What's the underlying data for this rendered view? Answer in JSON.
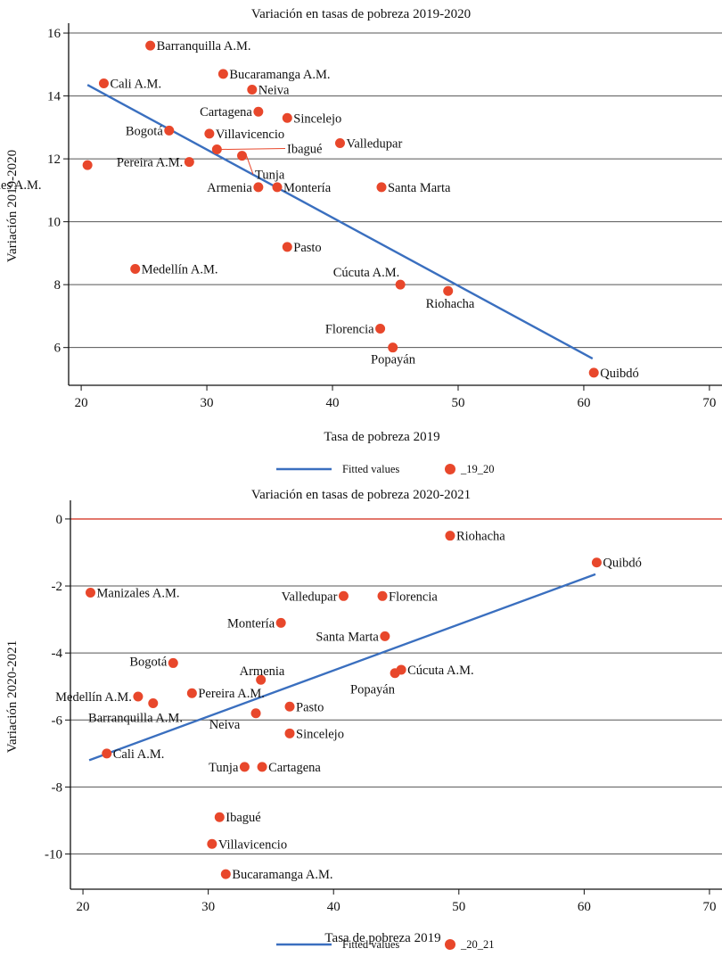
{
  "chart_data": [
    {
      "type": "scatter",
      "title": "Variación en tasas de pobreza 2019-2020",
      "xlabel": "Tasa de pobreza 2019",
      "ylabel": "Variación 2019-2020",
      "xlim": [
        19,
        71
      ],
      "ylim": [
        4.8,
        16.2
      ],
      "xticks": [
        20,
        30,
        40,
        50,
        60,
        70
      ],
      "yticks": [
        6,
        8,
        10,
        12,
        14,
        16
      ],
      "grid": "horizontal",
      "legend_position": "bottom",
      "colors": {
        "points": "#e8472b",
        "fit": "#3a6fbf",
        "grid": "#555555"
      },
      "legend": {
        "line": "Fitted values",
        "marker": "_19_20"
      },
      "fitted_line": {
        "x": [
          20.5,
          60.7
        ],
        "y": [
          14.35,
          5.65
        ]
      },
      "points": [
        {
          "label": "Barranquilla A.M.",
          "x": 25.5,
          "y": 15.6
        },
        {
          "label": "Cali A.M.",
          "x": 21.8,
          "y": 14.4
        },
        {
          "label": "Bucaramanga A.M.",
          "x": 31.3,
          "y": 14.7
        },
        {
          "label": "Neiva",
          "x": 33.6,
          "y": 14.2
        },
        {
          "label": "Cartagena",
          "x": 34.1,
          "y": 13.5
        },
        {
          "label": "Sincelejo",
          "x": 36.4,
          "y": 13.3
        },
        {
          "label": "Bogotá",
          "x": 27.0,
          "y": 12.9
        },
        {
          "label": "Villavicencio",
          "x": 30.2,
          "y": 12.8
        },
        {
          "label": "Valledupar",
          "x": 40.6,
          "y": 12.5
        },
        {
          "label": "Pereira A.M.",
          "x": 28.6,
          "y": 11.9
        },
        {
          "label": "Ibagué",
          "x": 30.8,
          "y": 12.3
        },
        {
          "label": "Tunja",
          "x": 32.8,
          "y": 12.1
        },
        {
          "label": "Manizales A.M.",
          "x": 20.5,
          "y": 11.8
        },
        {
          "label": "Armenia",
          "x": 34.1,
          "y": 11.1
        },
        {
          "label": "Montería",
          "x": 35.6,
          "y": 11.1
        },
        {
          "label": "Santa Marta",
          "x": 43.9,
          "y": 11.1
        },
        {
          "label": "Pasto",
          "x": 36.4,
          "y": 9.2
        },
        {
          "label": "Medellín A.M.",
          "x": 24.3,
          "y": 8.5
        },
        {
          "label": "Cúcuta A.M.",
          "x": 45.4,
          "y": 8.0
        },
        {
          "label": "Riohacha",
          "x": 49.2,
          "y": 7.8
        },
        {
          "label": "Florencia",
          "x": 43.8,
          "y": 6.6
        },
        {
          "label": "Popayán",
          "x": 44.8,
          "y": 6.0
        },
        {
          "label": "Quibdó",
          "x": 60.8,
          "y": 5.2
        }
      ]
    },
    {
      "type": "scatter",
      "title": "Variación en tasas de pobreza 2020-2021",
      "xlabel": "Tasa de pobreza 2019",
      "ylabel": "Variación 2020-2021",
      "xlim": [
        19,
        71
      ],
      "ylim": [
        -11.05,
        0.45
      ],
      "xticks": [
        20,
        30,
        40,
        50,
        60,
        70
      ],
      "yticks": [
        0,
        -2,
        -4,
        -6,
        -8,
        -10
      ],
      "grid": "horizontal",
      "legend_position": "bottom",
      "colors": {
        "points": "#e8472b",
        "fit": "#3a6fbf",
        "grid": "#555555",
        "zero_line": "#d63a2a"
      },
      "legend": {
        "line": "Fitted values",
        "marker": "_20_21"
      },
      "fitted_line": {
        "x": [
          20.5,
          60.9
        ],
        "y": [
          -7.2,
          -1.65
        ]
      },
      "points": [
        {
          "label": "Riohacha",
          "x": 49.3,
          "y": -0.5
        },
        {
          "label": "Quibdó",
          "x": 61.0,
          "y": -1.3
        },
        {
          "label": "Manizales A.M.",
          "x": 20.6,
          "y": -2.2
        },
        {
          "label": "Valledupar",
          "x": 40.8,
          "y": -2.3
        },
        {
          "label": "Florencia",
          "x": 43.9,
          "y": -2.3
        },
        {
          "label": "Montería",
          "x": 35.8,
          "y": -3.1
        },
        {
          "label": "Santa Marta",
          "x": 44.1,
          "y": -3.5
        },
        {
          "label": "Bogotá",
          "x": 27.2,
          "y": -4.3
        },
        {
          "label": "Armenia",
          "x": 34.2,
          "y": -4.8
        },
        {
          "label": "Popayán",
          "x": 44.9,
          "y": -4.6
        },
        {
          "label": "Cúcuta A.M.",
          "x": 45.4,
          "y": -4.5
        },
        {
          "label": "Medellín A.M.",
          "x": 24.4,
          "y": -5.3
        },
        {
          "label": "Barranquilla A.M.",
          "x": 25.6,
          "y": -5.5
        },
        {
          "label": "Pereira A.M.",
          "x": 28.7,
          "y": -5.2
        },
        {
          "label": "Pasto",
          "x": 36.5,
          "y": -5.6
        },
        {
          "label": "Neiva",
          "x": 33.8,
          "y": -5.8
        },
        {
          "label": "Sincelejo",
          "x": 36.5,
          "y": -6.4
        },
        {
          "label": "Cali A.M.",
          "x": 21.9,
          "y": -7.0
        },
        {
          "label": "Tunja",
          "x": 32.9,
          "y": -7.4
        },
        {
          "label": "Cartagena",
          "x": 34.3,
          "y": -7.4
        },
        {
          "label": "Ibagué",
          "x": 30.9,
          "y": -8.9
        },
        {
          "label": "Villavicencio",
          "x": 30.3,
          "y": -9.7
        },
        {
          "label": "Bucaramanga A.M.",
          "x": 31.4,
          "y": -10.6
        }
      ]
    }
  ]
}
